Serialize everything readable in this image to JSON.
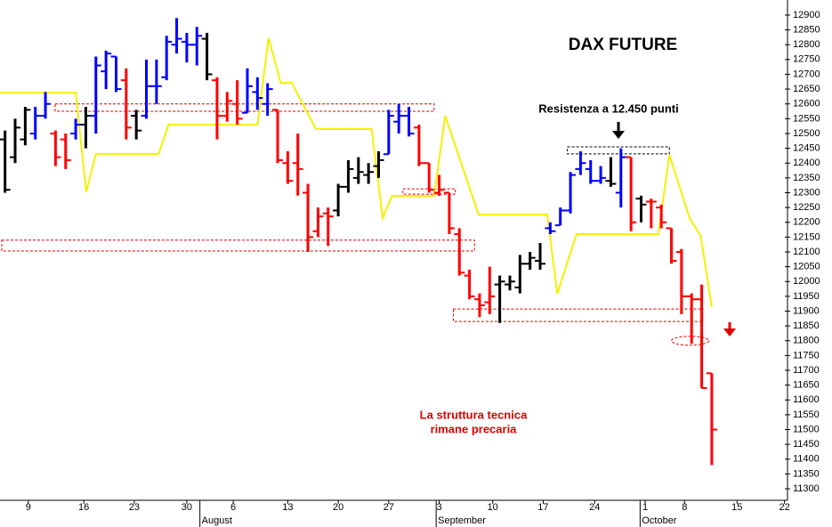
{
  "chart_data": {
    "type": "ohlc",
    "title": "DAX FUTURE",
    "annotations": [
      "Resistenza a 12.450 punti",
      "La struttura tecnica",
      "rimane precaria"
    ],
    "x": [
      0,
      1,
      2,
      3,
      4,
      5,
      6,
      7,
      8,
      9,
      10,
      11,
      12,
      13,
      14,
      15,
      16,
      17,
      18,
      19,
      20,
      21,
      22,
      23,
      24,
      25,
      26,
      27,
      28,
      29,
      30,
      31,
      32,
      33,
      34,
      35,
      36,
      37,
      38,
      39,
      40,
      41,
      42,
      43,
      44,
      45,
      46,
      47,
      48,
      49,
      50,
      51,
      52,
      53,
      54,
      55,
      56,
      57,
      58,
      59,
      60,
      61,
      62,
      63,
      64,
      65,
      66,
      67,
      68,
      69,
      70
    ],
    "high": [
      12510,
      12550,
      12590,
      12590,
      12640,
      12510,
      12500,
      12550,
      12590,
      12760,
      12780,
      12760,
      12720,
      12580,
      12750,
      12750,
      12830,
      12890,
      12840,
      12860,
      12840,
      12690,
      12640,
      12680,
      12720,
      12690,
      12670,
      12580,
      12440,
      12500,
      12330,
      12250,
      12250,
      12330,
      12410,
      12420,
      12400,
      12440,
      12580,
      12600,
      12590,
      12530,
      12400,
      12360,
      12300,
      12180,
      12040,
      11960,
      12050,
      12020,
      12020,
      12090,
      12100,
      12130,
      12200,
      12250,
      12370,
      12440,
      12410,
      12390,
      12420,
      12450,
      12420,
      12290,
      12280,
      12260,
      12180,
      12110,
      11960,
      11990,
      11690
    ],
    "low": [
      12300,
      12400,
      12460,
      12480,
      12550,
      12390,
      12380,
      12480,
      12450,
      12500,
      12650,
      12640,
      12480,
      12480,
      12550,
      12600,
      12680,
      12770,
      12740,
      12730,
      12680,
      12480,
      12540,
      12530,
      12570,
      12580,
      12560,
      12400,
      12330,
      12290,
      12100,
      12150,
      12120,
      12220,
      12300,
      12330,
      12330,
      12350,
      12430,
      12500,
      12490,
      12390,
      12300,
      12290,
      12160,
      12020,
      11940,
      11880,
      11890,
      11860,
      11970,
      11960,
      12040,
      12040,
      12160,
      12190,
      12230,
      12360,
      12330,
      12330,
      12320,
      12250,
      12170,
      12200,
      12180,
      12180,
      12060,
      11890,
      11790,
      11640,
      11380
    ],
    "open": [
      12480,
      12420,
      12480,
      12500,
      12560,
      12500,
      12480,
      12500,
      12530,
      12560,
      12710,
      12760,
      12680,
      12560,
      12560,
      12660,
      12690,
      12800,
      12810,
      12800,
      12820,
      12680,
      12560,
      12600,
      12570,
      12640,
      12600,
      12580,
      12400,
      12400,
      12300,
      12170,
      12230,
      12240,
      12320,
      12350,
      12360,
      12390,
      12430,
      12540,
      12560,
      12520,
      12400,
      12300,
      12300,
      12160,
      12020,
      11940,
      11930,
      11990,
      11990,
      11980,
      12060,
      12070,
      12180,
      12190,
      12240,
      12380,
      12380,
      12340,
      12340,
      12300,
      12420,
      12280,
      12270,
      12250,
      12180,
      12100,
      11950,
      11940,
      11690
    ],
    "close": [
      12310,
      12520,
      12580,
      12560,
      12600,
      12420,
      12410,
      12530,
      12560,
      12730,
      12770,
      12650,
      12520,
      12510,
      12660,
      12660,
      12810,
      12820,
      12800,
      12830,
      12700,
      12560,
      12610,
      12550,
      12660,
      12620,
      12650,
      12410,
      12340,
      12380,
      12150,
      12220,
      12220,
      12320,
      12380,
      12370,
      12370,
      12410,
      12560,
      12560,
      12500,
      12400,
      12310,
      12310,
      12180,
      12030,
      11950,
      11920,
      11950,
      12000,
      12000,
      12060,
      12080,
      12060,
      12170,
      12240,
      12360,
      12400,
      12340,
      12350,
      12330,
      12420,
      12200,
      12260,
      12270,
      12200,
      12070,
      11950,
      11940,
      11640,
      11500
    ],
    "colors": [
      "#000000",
      "#000000",
      "#000000",
      "#0000ff",
      "#0000ff",
      "#ff0000",
      "#ff0000",
      "#0000ff",
      "#000000",
      "#0000ff",
      "#0000ff",
      "#0000ff",
      "#ff0000",
      "#000000",
      "#0000ff",
      "#0000ff",
      "#0000ff",
      "#0000ff",
      "#0000ff",
      "#0000ff",
      "#000000",
      "#ff0000",
      "#ff0000",
      "#ff0000",
      "#0000ff",
      "#0000ff",
      "#0000ff",
      "#ff0000",
      "#ff0000",
      "#ff0000",
      "#ff0000",
      "#ff0000",
      "#ff0000",
      "#000000",
      "#000000",
      "#000000",
      "#000000",
      "#000000",
      "#0000ff",
      "#0000ff",
      "#0000ff",
      "#ff0000",
      "#ff0000",
      "#ff0000",
      "#ff0000",
      "#ff0000",
      "#ff0000",
      "#ff0000",
      "#ff0000",
      "#000000",
      "#000000",
      "#000000",
      "#000000",
      "#000000",
      "#0000ff",
      "#0000ff",
      "#0000ff",
      "#0000ff",
      "#0000ff",
      "#0000ff",
      "#000000",
      "#0000ff",
      "#ff0000",
      "#000000",
      "#ff0000",
      "#ff0000",
      "#ff0000",
      "#ff0000",
      "#ff0000",
      "#ff0000",
      "#ff0000"
    ],
    "line": {
      "color": "#f5f000",
      "x": [
        -0.5,
        7.0,
        8.04,
        9.0,
        15.2,
        16.2,
        25.0,
        26.1,
        27.3,
        28.4,
        30.8,
        36.3,
        37.4,
        38.3,
        42.5,
        43.6,
        46.9,
        53.7,
        54.7,
        56.6,
        64.7,
        65.8,
        67.8,
        68.9,
        70.0
      ],
      "values": [
        12638,
        12638,
        12302,
        12431,
        12431,
        12530,
        12530,
        12822,
        12671,
        12671,
        12515,
        12515,
        12214,
        12289,
        12289,
        12560,
        12226,
        12226,
        11959,
        12160,
        12160,
        12428,
        12214,
        12154,
        11914
      ]
    },
    "zones": [
      {
        "shape": "rect",
        "color": "#e00000",
        "x": [
          4.96,
          42.5
        ],
        "y": [
          12575,
          12600
        ]
      },
      {
        "shape": "rect",
        "color": "#e00000",
        "x": [
          39.4,
          44.6
        ],
        "y": [
          12295,
          12313
        ]
      },
      {
        "shape": "rect",
        "color": "#e00000",
        "x": [
          -0.33,
          46.5
        ],
        "y": [
          12103,
          12140
        ]
      },
      {
        "shape": "rect",
        "color": "#e00000",
        "x": [
          44.4,
          69.1
        ],
        "y": [
          11865,
          11907
        ]
      },
      {
        "shape": "rect",
        "color": "#000000",
        "x": [
          55.7,
          65.8
        ],
        "y": [
          12431,
          12455
        ]
      },
      {
        "shape": "ellipse",
        "color": "#e00000",
        "x": [
          66.0,
          69.7
        ],
        "y": [
          11785,
          11815
        ]
      }
    ],
    "xlim": [
      -0.5,
      77.5
    ],
    "ylim": [
      11261,
      12951
    ],
    "yticks": [
      11300,
      11350,
      11400,
      11450,
      11500,
      11550,
      11600,
      11650,
      11700,
      11750,
      11800,
      11850,
      11900,
      11950,
      12000,
      12050,
      12100,
      12150,
      12200,
      12250,
      12300,
      12350,
      12400,
      12450,
      12500,
      12550,
      12600,
      12650,
      12700,
      12750,
      12800,
      12850,
      12900
    ],
    "xticks": [
      {
        "value": 2.3,
        "label": "9"
      },
      {
        "value": 7.8,
        "label": "16"
      },
      {
        "value": 12.8,
        "label": "23"
      },
      {
        "value": 18,
        "label": "30"
      },
      {
        "value": 22.6,
        "label": "6"
      },
      {
        "value": 28,
        "label": "13"
      },
      {
        "value": 33,
        "label": "20"
      },
      {
        "value": 38,
        "label": "27"
      },
      {
        "value": 43,
        "label": "3"
      },
      {
        "value": 48.3,
        "label": "10"
      },
      {
        "value": 53.3,
        "label": "17"
      },
      {
        "value": 58.4,
        "label": "24"
      },
      {
        "value": 63.4,
        "label": "1"
      },
      {
        "value": 67.3,
        "label": "8"
      },
      {
        "value": 72.5,
        "label": "15"
      },
      {
        "value": 77.2,
        "label": "22"
      }
    ],
    "month_ticks": [
      {
        "value": 19.3,
        "label": "August"
      },
      {
        "value": 42.7,
        "label": "September"
      },
      {
        "value": 62.9,
        "label": "October"
      }
    ]
  }
}
